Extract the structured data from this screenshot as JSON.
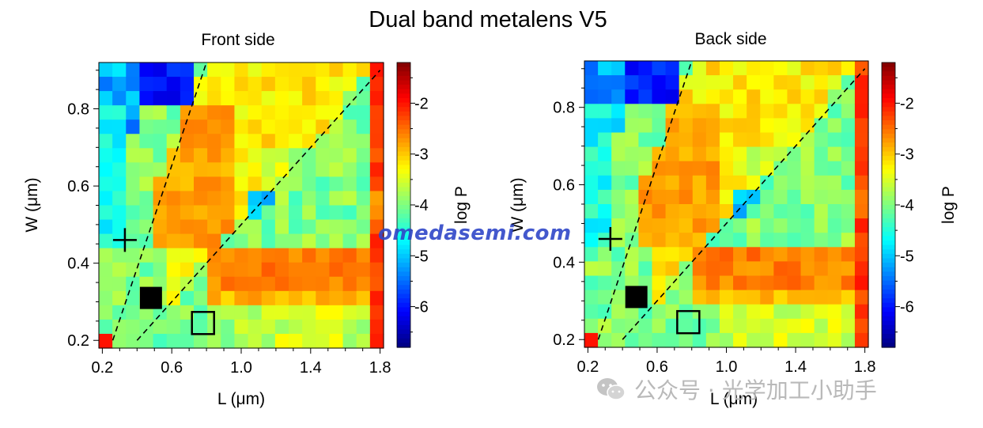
{
  "figure_title": "Dual band metalens V5",
  "watermark_site": "omedasemi.com",
  "watermark_wechat": "公众号 · 光学加工小助手",
  "chart_data": [
    {
      "type": "heatmap",
      "title": "Front side",
      "xlabel": "L (μm)",
      "ylabel": "W (μm)",
      "colorbar_label": "log P",
      "x_ticks": [
        "0.2",
        "0.6",
        "1.0",
        "1.4",
        "1.8"
      ],
      "y_ticks": [
        "0.2",
        "0.4",
        "0.6",
        "0.8"
      ],
      "colorbar_ticks": [
        "-2",
        "-3",
        "-4",
        "-5",
        "-6"
      ],
      "xlim": [
        0.18,
        1.82
      ],
      "ylim": [
        0.18,
        0.92
      ],
      "zlim": [
        -6.8,
        -1.2
      ],
      "markers": [
        {
          "kind": "plus",
          "x": 0.33,
          "y": 0.46
        },
        {
          "kind": "filled-square",
          "x": 0.48,
          "y": 0.31
        },
        {
          "kind": "open-square",
          "x": 0.78,
          "y": 0.245
        }
      ],
      "dashed_lines": [
        {
          "x1": 0.26,
          "y1": 0.2,
          "x2": 0.8,
          "y2": 0.92
        },
        {
          "x1": 0.4,
          "y1": 0.2,
          "x2": 1.8,
          "y2": 0.9
        }
      ]
    },
    {
      "type": "heatmap",
      "title": "Back side",
      "xlabel": "L (μm)",
      "ylabel": "W (μm)",
      "colorbar_label": "log P",
      "x_ticks": [
        "0.2",
        "0.6",
        "1.0",
        "1.4",
        "1.8"
      ],
      "y_ticks": [
        "0.2",
        "0.4",
        "0.6",
        "0.8"
      ],
      "colorbar_ticks": [
        "-2",
        "-3",
        "-4",
        "-5",
        "-6"
      ],
      "xlim": [
        0.18,
        1.82
      ],
      "ylim": [
        0.18,
        0.92
      ],
      "zlim": [
        -6.8,
        -1.2
      ],
      "markers": [
        {
          "kind": "plus",
          "x": 0.33,
          "y": 0.46
        },
        {
          "kind": "filled-square",
          "x": 0.48,
          "y": 0.31
        },
        {
          "kind": "open-square",
          "x": 0.78,
          "y": 0.245
        }
      ],
      "dashed_lines": [
        {
          "x1": 0.26,
          "y1": 0.2,
          "x2": 0.8,
          "y2": 0.92
        },
        {
          "x1": 0.4,
          "y1": 0.2,
          "x2": 1.8,
          "y2": 0.9
        }
      ]
    }
  ]
}
